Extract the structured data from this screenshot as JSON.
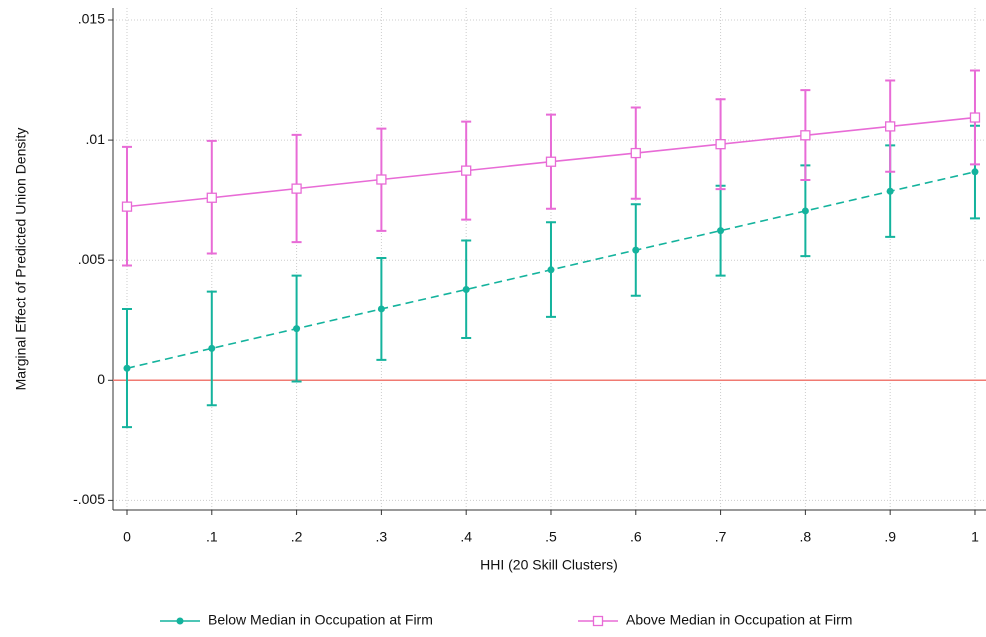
{
  "chart_data": {
    "type": "line",
    "x_label": "HHI (20 Skill Clusters)",
    "y_label": "Marginal Effect of Predicted Union Density",
    "x": [
      0,
      0.1,
      0.2,
      0.3,
      0.4,
      0.5,
      0.6,
      0.7,
      0.8,
      0.9,
      1
    ],
    "series": [
      {
        "name": "Below Median in Occupation at Firm",
        "color": "#14b39d",
        "linestyle": "dashed",
        "marker": "circle",
        "values": [
          0.0005,
          0.00133,
          0.00215,
          0.00297,
          0.00378,
          0.0046,
          0.00542,
          0.00623,
          0.00705,
          0.00787,
          0.00868
        ],
        "lower": [
          -0.00195,
          -0.00104,
          -5e-05,
          0.00085,
          0.00176,
          0.00264,
          0.00352,
          0.00436,
          0.00517,
          0.00597,
          0.00674
        ],
        "upper": [
          0.00297,
          0.00369,
          0.00436,
          0.00509,
          0.00582,
          0.00658,
          0.00733,
          0.0081,
          0.00895,
          0.00978,
          0.0106
        ]
      },
      {
        "name": "Above Median in Occupation at Firm",
        "color": "#e86bd6",
        "linestyle": "solid",
        "marker": "square",
        "values": [
          0.00723,
          0.0076,
          0.00798,
          0.00836,
          0.00873,
          0.0091,
          0.00946,
          0.00983,
          0.0102,
          0.01057,
          0.01094
        ],
        "lower": [
          0.00478,
          0.00528,
          0.00575,
          0.00622,
          0.00669,
          0.00714,
          0.00756,
          0.00796,
          0.00834,
          0.00868,
          0.00899
        ],
        "upper": [
          0.00972,
          0.00997,
          0.01022,
          0.01048,
          0.01077,
          0.01106,
          0.01136,
          0.0117,
          0.01208,
          0.01248,
          0.0129
        ]
      }
    ],
    "reference_line": {
      "value": 0,
      "color": "#f07a72"
    },
    "xlim": [
      -0.0165,
      1.013
    ],
    "ylim": [
      -0.0054,
      0.0155
    ],
    "xticks": [
      0,
      {
        "value": 0.1,
        "label": ".1"
      },
      {
        "value": 0.2,
        "label": ".2"
      },
      {
        "value": 0.3,
        "label": ".3"
      },
      {
        "value": 0.4,
        "label": ".4"
      },
      {
        "value": 0.5,
        "label": ".5"
      },
      {
        "value": 0.6,
        "label": ".6"
      },
      {
        "value": 0.7,
        "label": ".7"
      },
      {
        "value": 0.8,
        "label": ".8"
      },
      {
        "value": 0.9,
        "label": ".9"
      },
      1
    ],
    "yticks": [
      {
        "value": -0.005,
        "label": "-.005"
      },
      0,
      {
        "value": 0.005,
        "label": ".005"
      },
      {
        "value": 0.01,
        "label": ".01"
      },
      {
        "value": 0.015,
        "label": ".015"
      }
    ],
    "grid": true,
    "legend": "bottom"
  }
}
